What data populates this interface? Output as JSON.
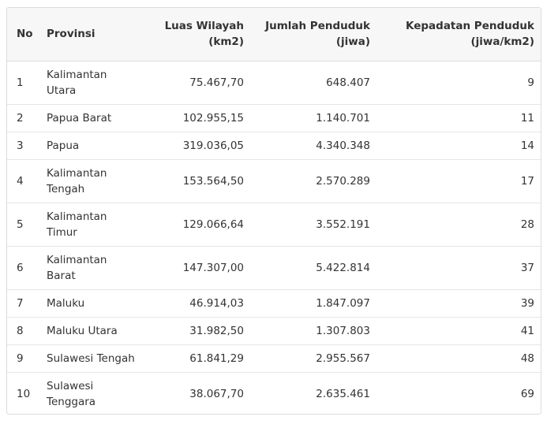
{
  "table": {
    "headers": {
      "no": "No",
      "provinsi": "Provinsi",
      "luas_line1": "Luas Wilayah",
      "luas_line2": "(km2)",
      "jumlah_line1": "Jumlah Penduduk",
      "jumlah_line2": "(jiwa)",
      "kepadatan_line1": "Kepadatan Penduduk",
      "kepadatan_line2": "(jiwa/km2)"
    },
    "rows": [
      {
        "no": "1",
        "prov_line1": "Kalimantan",
        "prov_line2": "Utara",
        "luas": "75.467,70",
        "jumlah": "648.407",
        "kepadatan": "9"
      },
      {
        "no": "2",
        "prov_line1": "Papua Barat",
        "prov_line2": "",
        "luas": "102.955,15",
        "jumlah": "1.140.701",
        "kepadatan": "11"
      },
      {
        "no": "3",
        "prov_line1": "Papua",
        "prov_line2": "",
        "luas": "319.036,05",
        "jumlah": "4.340.348",
        "kepadatan": "14"
      },
      {
        "no": "4",
        "prov_line1": "Kalimantan",
        "prov_line2": "Tengah",
        "luas": "153.564,50",
        "jumlah": "2.570.289",
        "kepadatan": "17"
      },
      {
        "no": "5",
        "prov_line1": "Kalimantan",
        "prov_line2": "Timur",
        "luas": "129.066,64",
        "jumlah": "3.552.191",
        "kepadatan": "28"
      },
      {
        "no": "6",
        "prov_line1": "Kalimantan",
        "prov_line2": "Barat",
        "luas": "147.307,00",
        "jumlah": "5.422.814",
        "kepadatan": "37"
      },
      {
        "no": "7",
        "prov_line1": "Maluku",
        "prov_line2": "",
        "luas": "46.914,03",
        "jumlah": "1.847.097",
        "kepadatan": "39"
      },
      {
        "no": "8",
        "prov_line1": "Maluku Utara",
        "prov_line2": "",
        "luas": "31.982,50",
        "jumlah": "1.307.803",
        "kepadatan": "41"
      },
      {
        "no": "9",
        "prov_line1": "Sulawesi Tengah",
        "prov_line2": "",
        "luas": "61.841,29",
        "jumlah": "2.955.567",
        "kepadatan": "48"
      },
      {
        "no": "10",
        "prov_line1": "Sulawesi",
        "prov_line2": "Tenggara",
        "luas": "38.067,70",
        "jumlah": "2.635.461",
        "kepadatan": "69"
      }
    ]
  }
}
